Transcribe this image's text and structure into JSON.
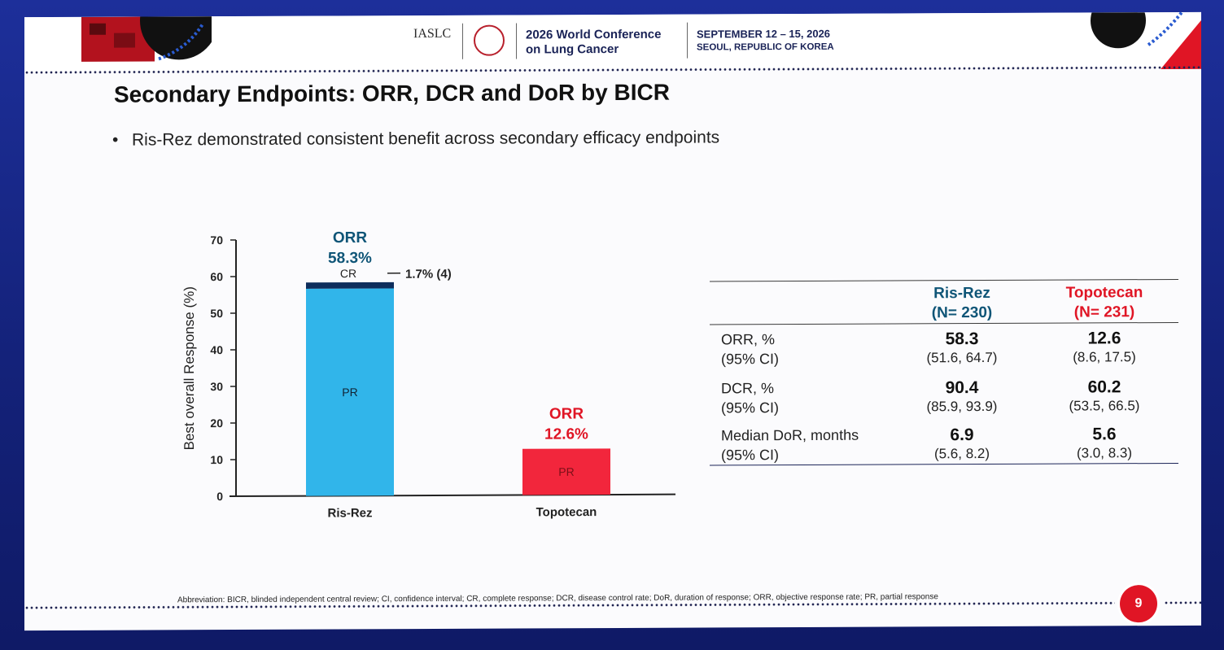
{
  "header": {
    "org": "IASLC",
    "conference_line1": "2026 World Conference",
    "conference_line2": "on Lung Cancer",
    "dates": "SEPTEMBER 12 – 15, 2026",
    "location": "SEOUL, REPUBLIC OF KOREA"
  },
  "slide": {
    "title": "Secondary Endpoints: ORR, DCR and DoR by BICR",
    "bullet": "Ris-Rez demonstrated consistent benefit across secondary efficacy endpoints",
    "footnote": "Abbreviation: BICR, blinded independent central review;  CI, confidence interval; CR, complete response; DCR, disease control rate; DoR, duration of response; ORR, objective response rate; PR, partial response",
    "page_number": "9"
  },
  "chart_data": {
    "type": "bar",
    "stacked": true,
    "categories": [
      "Ris-Rez",
      "Topotecan"
    ],
    "series": [
      {
        "name": "PR",
        "values": [
          56.6,
          12.6
        ],
        "colors": [
          "#31b5ea",
          "#f2263c"
        ]
      },
      {
        "name": "CR",
        "values": [
          1.7,
          0
        ],
        "colors": [
          "#0e2e5c",
          "#0e2e5c"
        ]
      }
    ],
    "ylabel": "Best overall Response (%)",
    "ylim": [
      0,
      70
    ],
    "yticks": [
      "0",
      "10",
      "20",
      "30",
      "40",
      "50",
      "60",
      "70"
    ],
    "annotations": {
      "risrez_orr_label": "ORR",
      "risrez_orr_value": "58.3%",
      "topo_orr_label": "ORR",
      "topo_orr_value": "12.6%",
      "cr_label": "CR",
      "cr_note": "1.7% (4)",
      "pr_label_risrez": "PR",
      "pr_label_topo": "PR"
    },
    "colors": {
      "risrez_accent": "#0f5577",
      "topotecan_accent": "#e01525"
    }
  },
  "table": {
    "columns": [
      {
        "name": "Ris-Rez",
        "n": "(N= 230)"
      },
      {
        "name": "Topotecan",
        "n": "(N= 231)"
      }
    ],
    "rows": [
      {
        "label": "ORR, %",
        "sub": "(95% CI)",
        "values": [
          "58.3",
          "12.6"
        ],
        "cis": [
          "(51.6, 64.7)",
          "(8.6, 17.5)"
        ]
      },
      {
        "label": "DCR, %",
        "sub": "(95% CI)",
        "values": [
          "90.4",
          "60.2"
        ],
        "cis": [
          "(85.9, 93.9)",
          "(53.5, 66.5)"
        ]
      },
      {
        "label": "Median DoR, months",
        "sub": "(95% CI)",
        "values": [
          "6.9",
          "5.6"
        ],
        "cis": [
          "(5.6, 8.2)",
          "(3.0, 8.3)"
        ]
      }
    ]
  }
}
